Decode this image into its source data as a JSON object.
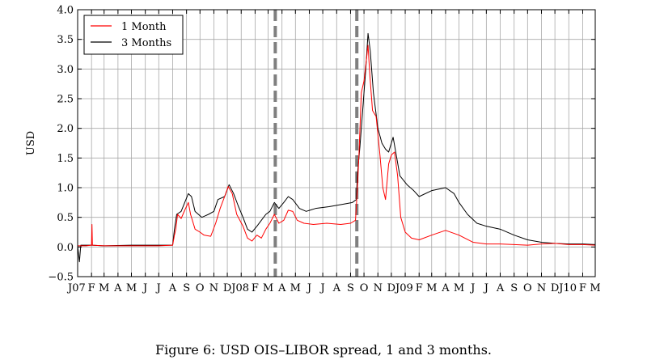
{
  "caption": "Figure 6: USD OIS–LIBOR spread, 1 and 3 months.",
  "colors": {
    "one_month": "#ff0000",
    "three_months": "#000000",
    "grid": "#a8a8a8",
    "vline": "#7f7f7f"
  },
  "chart_data": {
    "type": "line",
    "title": "",
    "xlabel": "",
    "ylabel": "USD",
    "ylim": [
      -0.5,
      4.0
    ],
    "xlim": [
      "2007-01-01",
      "2010-03-01"
    ],
    "grid": true,
    "legend_position": "top-left",
    "y_ticks": [
      "−0.5",
      "0.0",
      "0.5",
      "1.0",
      "1.5",
      "2.0",
      "2.5",
      "3.0",
      "3.5",
      "4.0"
    ],
    "y_tick_values": [
      -0.5,
      0,
      0.5,
      1,
      1.5,
      2,
      2.5,
      3,
      3.5,
      4
    ],
    "x_ticks": [
      {
        "date": "2007-01-01",
        "label": "J07"
      },
      {
        "date": "2007-02-01",
        "label": "F"
      },
      {
        "date": "2007-03-01",
        "label": "M"
      },
      {
        "date": "2007-04-01",
        "label": "A"
      },
      {
        "date": "2007-05-01",
        "label": "M"
      },
      {
        "date": "2007-06-01",
        "label": "J"
      },
      {
        "date": "2007-07-01",
        "label": "J"
      },
      {
        "date": "2007-08-01",
        "label": "A"
      },
      {
        "date": "2007-09-01",
        "label": "S"
      },
      {
        "date": "2007-10-01",
        "label": "O"
      },
      {
        "date": "2007-11-01",
        "label": "N"
      },
      {
        "date": "2007-12-01",
        "label": "D"
      },
      {
        "date": "2008-01-01",
        "label": "J08"
      },
      {
        "date": "2008-02-01",
        "label": "F"
      },
      {
        "date": "2008-03-01",
        "label": "M"
      },
      {
        "date": "2008-04-01",
        "label": "A"
      },
      {
        "date": "2008-05-01",
        "label": "M"
      },
      {
        "date": "2008-06-01",
        "label": "J"
      },
      {
        "date": "2008-07-01",
        "label": "J"
      },
      {
        "date": "2008-08-01",
        "label": "A"
      },
      {
        "date": "2008-09-01",
        "label": "S"
      },
      {
        "date": "2008-10-01",
        "label": "O"
      },
      {
        "date": "2008-11-01",
        "label": "N"
      },
      {
        "date": "2008-12-01",
        "label": "D"
      },
      {
        "date": "2009-01-01",
        "label": "J09"
      },
      {
        "date": "2009-02-01",
        "label": "F"
      },
      {
        "date": "2009-03-01",
        "label": "M"
      },
      {
        "date": "2009-04-01",
        "label": "A"
      },
      {
        "date": "2009-05-01",
        "label": "M"
      },
      {
        "date": "2009-06-01",
        "label": "J"
      },
      {
        "date": "2009-07-01",
        "label": "J"
      },
      {
        "date": "2009-08-01",
        "label": "A"
      },
      {
        "date": "2009-09-01",
        "label": "S"
      },
      {
        "date": "2009-10-01",
        "label": "O"
      },
      {
        "date": "2009-11-01",
        "label": "N"
      },
      {
        "date": "2009-12-01",
        "label": "D"
      },
      {
        "date": "2010-01-01",
        "label": "J10"
      },
      {
        "date": "2010-02-01",
        "label": "F"
      },
      {
        "date": "2010-03-01",
        "label": "M"
      }
    ],
    "vertical_markers": [
      "2008-03-17",
      "2008-09-15"
    ],
    "series": [
      {
        "name": "1 Month",
        "color": "#ff0000",
        "points": [
          [
            "2007-01-01",
            0.02
          ],
          [
            "2007-01-20",
            0.02
          ],
          [
            "2007-02-01",
            0.03
          ],
          [
            "2007-02-02",
            0.38
          ],
          [
            "2007-02-03",
            0.03
          ],
          [
            "2007-03-01",
            0.02
          ],
          [
            "2007-05-01",
            0.02
          ],
          [
            "2007-07-01",
            0.02
          ],
          [
            "2007-08-01",
            0.03
          ],
          [
            "2007-08-05",
            0.2
          ],
          [
            "2007-08-08",
            0.3
          ],
          [
            "2007-08-12",
            0.55
          ],
          [
            "2007-08-20",
            0.48
          ],
          [
            "2007-08-28",
            0.62
          ],
          [
            "2007-09-05",
            0.75
          ],
          [
            "2007-09-10",
            0.55
          ],
          [
            "2007-09-20",
            0.3
          ],
          [
            "2007-10-01",
            0.25
          ],
          [
            "2007-10-10",
            0.2
          ],
          [
            "2007-10-25",
            0.18
          ],
          [
            "2007-11-05",
            0.4
          ],
          [
            "2007-11-15",
            0.65
          ],
          [
            "2007-11-25",
            0.85
          ],
          [
            "2007-12-03",
            1.02
          ],
          [
            "2007-12-12",
            0.9
          ],
          [
            "2007-12-22",
            0.55
          ],
          [
            "2008-01-05",
            0.35
          ],
          [
            "2008-01-15",
            0.15
          ],
          [
            "2008-01-25",
            0.1
          ],
          [
            "2008-02-05",
            0.2
          ],
          [
            "2008-02-15",
            0.15
          ],
          [
            "2008-02-25",
            0.3
          ],
          [
            "2008-03-05",
            0.4
          ],
          [
            "2008-03-15",
            0.55
          ],
          [
            "2008-03-25",
            0.4
          ],
          [
            "2008-04-05",
            0.45
          ],
          [
            "2008-04-15",
            0.62
          ],
          [
            "2008-04-25",
            0.6
          ],
          [
            "2008-05-05",
            0.45
          ],
          [
            "2008-05-20",
            0.4
          ],
          [
            "2008-06-10",
            0.38
          ],
          [
            "2008-07-10",
            0.4
          ],
          [
            "2008-08-10",
            0.38
          ],
          [
            "2008-09-01",
            0.4
          ],
          [
            "2008-09-12",
            0.45
          ],
          [
            "2008-09-16",
            0.95
          ],
          [
            "2008-09-20",
            1.6
          ],
          [
            "2008-09-25",
            2.6
          ],
          [
            "2008-10-01",
            2.8
          ],
          [
            "2008-10-10",
            3.4
          ],
          [
            "2008-10-14",
            2.9
          ],
          [
            "2008-10-20",
            2.3
          ],
          [
            "2008-10-28",
            2.2
          ],
          [
            "2008-11-05",
            1.6
          ],
          [
            "2008-11-12",
            1.0
          ],
          [
            "2008-11-18",
            0.8
          ],
          [
            "2008-11-25",
            1.4
          ],
          [
            "2008-12-01",
            1.55
          ],
          [
            "2008-12-08",
            1.6
          ],
          [
            "2008-12-15",
            1.2
          ],
          [
            "2008-12-22",
            0.5
          ],
          [
            "2009-01-01",
            0.25
          ],
          [
            "2009-01-15",
            0.15
          ],
          [
            "2009-02-01",
            0.12
          ],
          [
            "2009-03-01",
            0.2
          ],
          [
            "2009-04-01",
            0.28
          ],
          [
            "2009-05-01",
            0.2
          ],
          [
            "2009-06-01",
            0.08
          ],
          [
            "2009-07-01",
            0.05
          ],
          [
            "2009-08-01",
            0.05
          ],
          [
            "2009-09-01",
            0.04
          ],
          [
            "2009-10-01",
            0.03
          ],
          [
            "2009-11-01",
            0.05
          ],
          [
            "2009-12-01",
            0.06
          ],
          [
            "2010-01-01",
            0.04
          ],
          [
            "2010-02-01",
            0.04
          ],
          [
            "2010-03-01",
            0.03
          ]
        ]
      },
      {
        "name": "3 Months",
        "color": "#000000",
        "points": [
          [
            "2007-01-01",
            0.02
          ],
          [
            "2007-01-05",
            -0.25
          ],
          [
            "2007-01-08",
            0.03
          ],
          [
            "2007-02-01",
            0.03
          ],
          [
            "2007-03-01",
            0.02
          ],
          [
            "2007-05-01",
            0.03
          ],
          [
            "2007-07-01",
            0.03
          ],
          [
            "2007-08-01",
            0.03
          ],
          [
            "2007-08-05",
            0.3
          ],
          [
            "2007-08-10",
            0.55
          ],
          [
            "2007-08-20",
            0.6
          ],
          [
            "2007-08-28",
            0.75
          ],
          [
            "2007-09-05",
            0.9
          ],
          [
            "2007-09-12",
            0.85
          ],
          [
            "2007-09-20",
            0.6
          ],
          [
            "2007-10-05",
            0.5
          ],
          [
            "2007-10-20",
            0.55
          ],
          [
            "2007-11-01",
            0.6
          ],
          [
            "2007-11-10",
            0.8
          ],
          [
            "2007-11-25",
            0.85
          ],
          [
            "2007-12-05",
            1.05
          ],
          [
            "2007-12-15",
            0.9
          ],
          [
            "2007-12-25",
            0.7
          ],
          [
            "2008-01-05",
            0.5
          ],
          [
            "2008-01-15",
            0.3
          ],
          [
            "2008-01-25",
            0.25
          ],
          [
            "2008-02-05",
            0.35
          ],
          [
            "2008-02-15",
            0.45
          ],
          [
            "2008-02-25",
            0.55
          ],
          [
            "2008-03-05",
            0.6
          ],
          [
            "2008-03-15",
            0.75
          ],
          [
            "2008-03-25",
            0.65
          ],
          [
            "2008-04-05",
            0.75
          ],
          [
            "2008-04-15",
            0.85
          ],
          [
            "2008-04-25",
            0.8
          ],
          [
            "2008-05-10",
            0.65
          ],
          [
            "2008-05-25",
            0.6
          ],
          [
            "2008-06-15",
            0.65
          ],
          [
            "2008-07-15",
            0.68
          ],
          [
            "2008-08-15",
            0.72
          ],
          [
            "2008-09-05",
            0.75
          ],
          [
            "2008-09-14",
            0.8
          ],
          [
            "2008-09-16",
            1.2
          ],
          [
            "2008-09-22",
            1.7
          ],
          [
            "2008-09-28",
            2.3
          ],
          [
            "2008-10-05",
            3.0
          ],
          [
            "2008-10-10",
            3.6
          ],
          [
            "2008-10-15",
            3.3
          ],
          [
            "2008-10-22",
            2.6
          ],
          [
            "2008-11-01",
            2.0
          ],
          [
            "2008-11-10",
            1.75
          ],
          [
            "2008-11-18",
            1.65
          ],
          [
            "2008-11-25",
            1.6
          ],
          [
            "2008-12-05",
            1.85
          ],
          [
            "2008-12-12",
            1.55
          ],
          [
            "2008-12-20",
            1.2
          ],
          [
            "2009-01-05",
            1.05
          ],
          [
            "2009-01-20",
            0.95
          ],
          [
            "2009-02-01",
            0.85
          ],
          [
            "2009-03-01",
            0.95
          ],
          [
            "2009-04-01",
            1.0
          ],
          [
            "2009-04-20",
            0.9
          ],
          [
            "2009-05-01",
            0.75
          ],
          [
            "2009-05-20",
            0.55
          ],
          [
            "2009-06-10",
            0.4
          ],
          [
            "2009-07-01",
            0.35
          ],
          [
            "2009-08-01",
            0.3
          ],
          [
            "2009-09-01",
            0.2
          ],
          [
            "2009-10-01",
            0.12
          ],
          [
            "2009-11-01",
            0.08
          ],
          [
            "2009-12-01",
            0.06
          ],
          [
            "2010-01-01",
            0.05
          ],
          [
            "2010-02-01",
            0.05
          ],
          [
            "2010-03-01",
            0.04
          ]
        ]
      }
    ]
  }
}
